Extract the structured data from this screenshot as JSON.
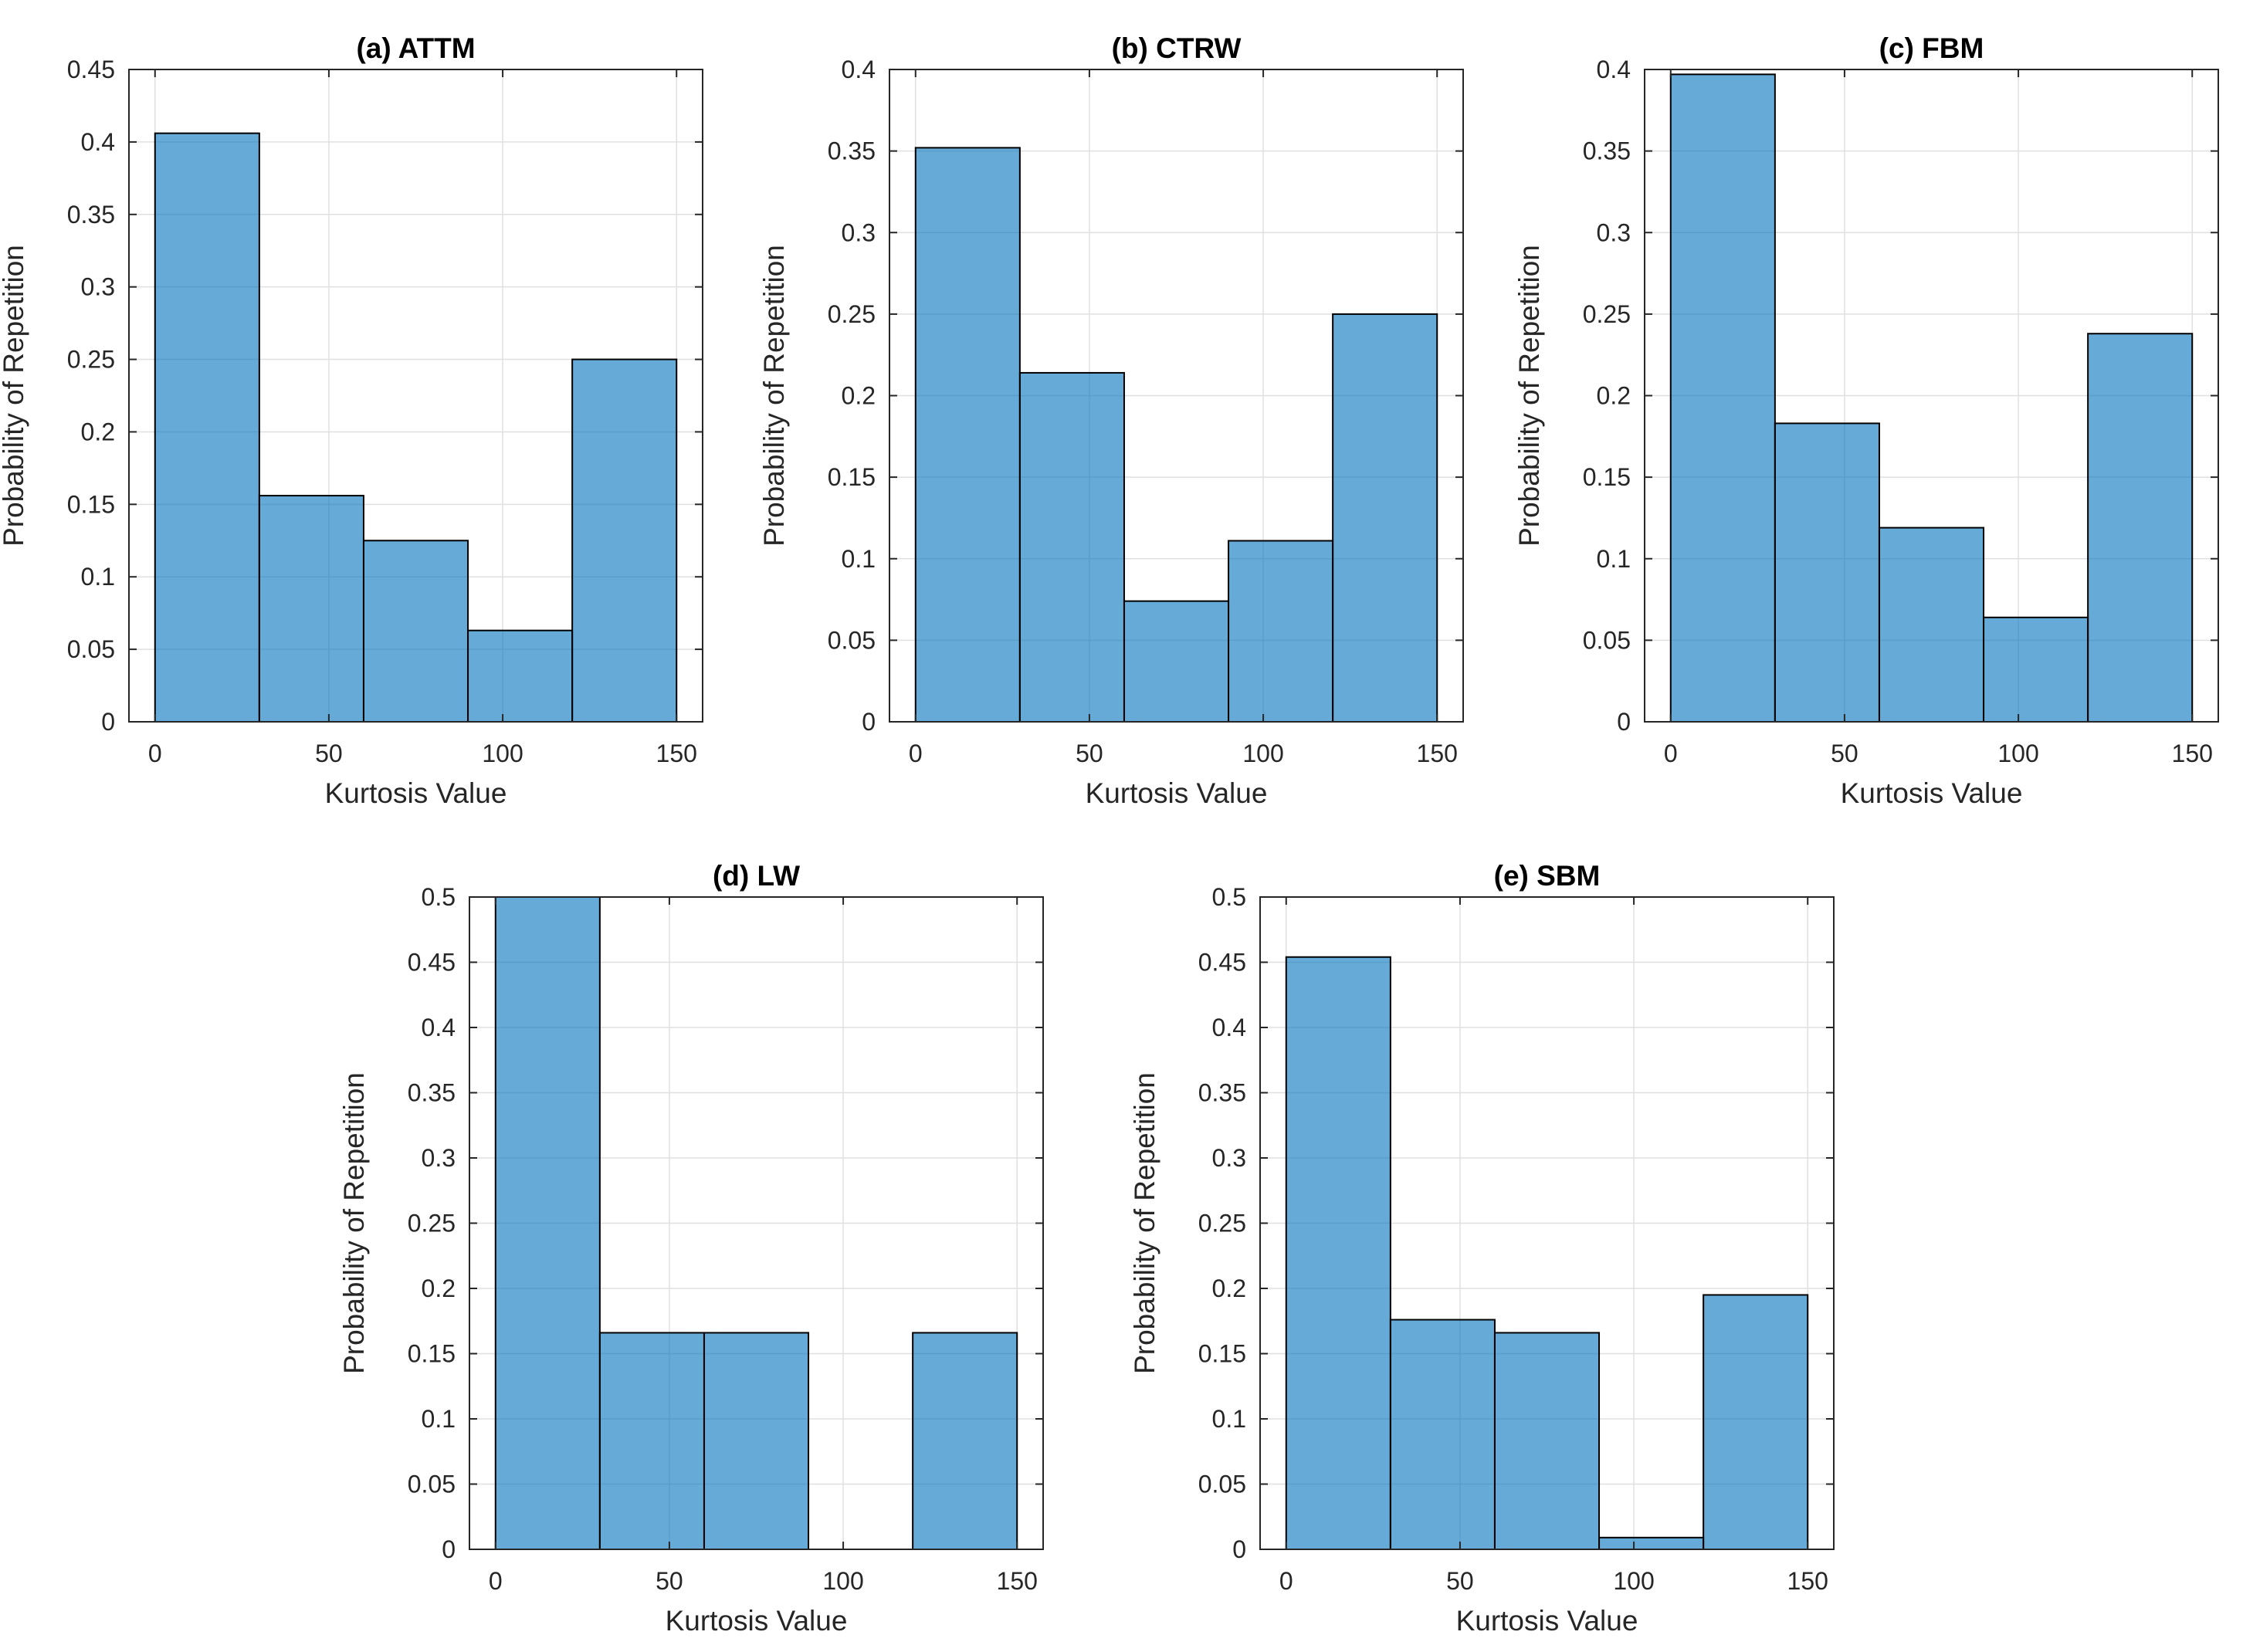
{
  "figure": {
    "background": "#FFFFFF",
    "bar_fill_hex": "#66AAD7",
    "bar_fill_rgba": "rgba(0,114,189,0.6)",
    "bar_edge_color": "#000000",
    "axis_color": "#262626",
    "grid_color": "#E0E0E0",
    "tick_label_color": "#262626",
    "axis_label_color": "#262626",
    "title_color": "#000000"
  },
  "chart_data": [
    {
      "type": "bar",
      "panel": "a",
      "title": "(a) ATTM",
      "xlabel": "Kurtosis Value",
      "ylabel": "Probability of Repetition",
      "bin_edges": [
        0,
        30,
        60,
        90,
        120,
        150
      ],
      "bin_width": 30,
      "values": [
        0.406,
        0.156,
        0.125,
        0.063,
        0.25
      ],
      "xlim": [
        -7.5,
        157.5
      ],
      "ylim": [
        0,
        0.45
      ],
      "xticks": [
        0,
        50,
        100,
        150
      ],
      "yticks": [
        0,
        0.05,
        0.1,
        0.15,
        0.2,
        0.25,
        0.3,
        0.35,
        0.4,
        0.45
      ],
      "grid": true,
      "legend": "none"
    },
    {
      "type": "bar",
      "panel": "b",
      "title": "(b) CTRW",
      "xlabel": "Kurtosis Value",
      "ylabel": "Probability of Repetition",
      "bin_edges": [
        0,
        30,
        60,
        90,
        120,
        150
      ],
      "bin_width": 30,
      "values": [
        0.352,
        0.214,
        0.074,
        0.111,
        0.25
      ],
      "xlim": [
        -7.5,
        157.5
      ],
      "ylim": [
        0,
        0.4
      ],
      "xticks": [
        0,
        50,
        100,
        150
      ],
      "yticks": [
        0,
        0.05,
        0.1,
        0.15,
        0.2,
        0.25,
        0.3,
        0.35,
        0.4
      ],
      "grid": true,
      "legend": "none"
    },
    {
      "type": "bar",
      "panel": "c",
      "title": "(c) FBM",
      "xlabel": "Kurtosis Value",
      "ylabel": "Probability of Repetition",
      "bin_edges": [
        0,
        30,
        60,
        90,
        120,
        150
      ],
      "bin_width": 30,
      "values": [
        0.397,
        0.183,
        0.119,
        0.064,
        0.238
      ],
      "xlim": [
        -7.5,
        157.5
      ],
      "ylim": [
        0,
        0.4
      ],
      "xticks": [
        0,
        50,
        100,
        150
      ],
      "yticks": [
        0,
        0.05,
        0.1,
        0.15,
        0.2,
        0.25,
        0.3,
        0.35,
        0.4
      ],
      "grid": true,
      "legend": "none"
    },
    {
      "type": "bar",
      "panel": "d",
      "title": "(d) LW",
      "xlabel": "Kurtosis Value",
      "ylabel": "Probability of Repetition",
      "bin_edges": [
        0,
        30,
        60,
        90,
        120,
        150
      ],
      "bin_width": 30,
      "values": [
        0.5,
        0.166,
        0.166,
        0,
        0.166
      ],
      "xlim": [
        -7.5,
        157.5
      ],
      "ylim": [
        0,
        0.5
      ],
      "xticks": [
        0,
        50,
        100,
        150
      ],
      "yticks": [
        0,
        0.05,
        0.1,
        0.15,
        0.2,
        0.25,
        0.3,
        0.35,
        0.4,
        0.45,
        0.5
      ],
      "grid": true,
      "legend": "none"
    },
    {
      "type": "bar",
      "panel": "e",
      "title": "(e) SBM",
      "xlabel": "Kurtosis Value",
      "ylabel": "Probability of Repetition",
      "bin_edges": [
        0,
        30,
        60,
        90,
        120,
        150
      ],
      "bin_width": 30,
      "values": [
        0.454,
        0.176,
        0.166,
        0.009,
        0.195
      ],
      "xlim": [
        -7.5,
        157.5
      ],
      "ylim": [
        0,
        0.5
      ],
      "xticks": [
        0,
        50,
        100,
        150
      ],
      "yticks": [
        0,
        0.05,
        0.1,
        0.15,
        0.2,
        0.25,
        0.3,
        0.35,
        0.4,
        0.45,
        0.5
      ],
      "grid": true,
      "legend": "none"
    }
  ]
}
